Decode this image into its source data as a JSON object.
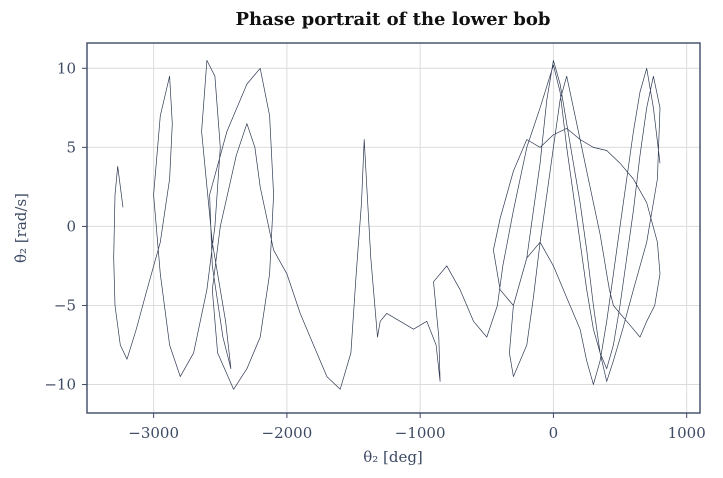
{
  "chart_data": {
    "type": "line",
    "title": "Phase portrait of the lower bob",
    "xlabel": "θ₂  [deg]",
    "ylabel": "θ̇₂  [rad/s]",
    "xlim": [
      -3500,
      1100
    ],
    "ylim": [
      -11.8,
      11.6
    ],
    "xticks": [
      -3000,
      -2000,
      -1000,
      0,
      1000
    ],
    "yticks": [
      -10,
      -5,
      0,
      5,
      10
    ],
    "xtick_labels": [
      "−3000",
      "−2000",
      "−1000",
      "0",
      "1000"
    ],
    "ytick_labels": [
      "−10",
      "−5",
      "0",
      "5",
      "10"
    ],
    "grid": true,
    "colors": {
      "trace": "#2f3a52",
      "axes": "#3d4a63",
      "grid": "#dcdcdc"
    },
    "series": [
      {
        "x": [
          -3230,
          -3270,
          -3290,
          -3300,
          -3290,
          -3250,
          -3200,
          -3130,
          -3050,
          -2950,
          -2880,
          -2860,
          -2880,
          -2950,
          -3000,
          -2950,
          -2880,
          -2800,
          -2700,
          -2600,
          -2540,
          -2500,
          -2540,
          -2600,
          -2640,
          -2560,
          -2460,
          -2420,
          -2480,
          -2560,
          -2580,
          -2450,
          -2300,
          -2200,
          -2130,
          -2100,
          -2130,
          -2200,
          -2300,
          -2400,
          -2520,
          -2560,
          -2500,
          -2380,
          -2300,
          -2240,
          -2200,
          -2100,
          -2000,
          -1900,
          -1800,
          -1700,
          -1600,
          -1520,
          -1480,
          -1440,
          -1420,
          -1400,
          -1370,
          -1340,
          -1320,
          -1300,
          -1250,
          -1150,
          -1050,
          -950,
          -880,
          -850,
          -860,
          -900,
          -800,
          -700,
          -600,
          -500,
          -420,
          -380,
          -300,
          -200,
          -100,
          0,
          50,
          100,
          150,
          200,
          250,
          300,
          350,
          400,
          450,
          500,
          550,
          600,
          650,
          700,
          750,
          800,
          780,
          700,
          600,
          520,
          450,
          400,
          350,
          300,
          250,
          200,
          150,
          100,
          50,
          0,
          -50,
          -100,
          -150,
          -200,
          -300,
          -400,
          -450,
          -400,
          -300,
          -200,
          -100,
          0,
          100,
          200,
          300,
          400,
          500,
          600,
          700,
          780,
          800,
          760,
          700,
          650,
          600,
          550,
          500,
          450,
          420,
          400,
          380,
          350,
          300,
          250,
          200,
          150,
          100,
          50,
          0,
          -50,
          -100,
          -150,
          -200,
          -300,
          -330,
          -300,
          -200,
          -100,
          0,
          100,
          200,
          250,
          300,
          350,
          400,
          450,
          500,
          550,
          600,
          650,
          700,
          750,
          800
        ],
        "y": [
          1.2,
          3.8,
          2.0,
          -2.0,
          -5.0,
          -7.5,
          -8.4,
          -6.5,
          -4.0,
          -1.0,
          3.0,
          6.5,
          9.5,
          7.0,
          2.0,
          -3.0,
          -7.5,
          -9.5,
          -8.0,
          -4.0,
          0.0,
          5.0,
          9.5,
          10.5,
          6.0,
          -1.0,
          -6.0,
          -9.0,
          -7.0,
          -2.5,
          2.0,
          6.0,
          9.0,
          10.0,
          7.0,
          2.0,
          -3.0,
          -7.0,
          -9.0,
          -10.3,
          -8.0,
          -4.0,
          0.0,
          4.5,
          6.5,
          5.0,
          2.5,
          -1.5,
          -3.0,
          -5.5,
          -7.5,
          -9.5,
          -10.3,
          -8.0,
          -3.0,
          1.5,
          5.5,
          2.5,
          -2.0,
          -5.0,
          -7.0,
          -6.0,
          -5.5,
          -6.0,
          -6.5,
          -6.0,
          -7.5,
          -9.8,
          -7.0,
          -3.5,
          -2.5,
          -4.0,
          -6.0,
          -7.0,
          -5.0,
          -2.5,
          1.0,
          5.0,
          7.5,
          10.2,
          8.5,
          5.0,
          2.0,
          -1.0,
          -4.0,
          -6.5,
          -8.0,
          -9.0,
          -7.5,
          -5.0,
          -2.0,
          1.0,
          4.5,
          7.5,
          9.5,
          7.5,
          3.0,
          -1.0,
          -4.0,
          -6.5,
          -8.5,
          -9.8,
          -8.0,
          -5.0,
          -1.5,
          1.5,
          4.0,
          6.5,
          9.0,
          10.5,
          8.0,
          4.0,
          1.0,
          -2.0,
          -5.0,
          -4.0,
          -1.5,
          0.5,
          3.5,
          5.5,
          5.0,
          5.8,
          6.2,
          5.5,
          5.0,
          4.8,
          4.0,
          3.0,
          1.5,
          -1.0,
          -3.0,
          -5.0,
          -6.0,
          -7.0,
          -6.5,
          -6.0,
          -5.5,
          -5.0,
          -4.0,
          -3.0,
          -2.0,
          -0.5,
          1.5,
          3.5,
          5.5,
          7.5,
          9.5,
          8.0,
          5.0,
          2.0,
          -1.0,
          -4.5,
          -7.5,
          -9.5,
          -8.0,
          -5.0,
          -2.0,
          -1.0,
          -2.5,
          -4.5,
          -6.5,
          -8.5,
          -10.0,
          -8.5,
          -6.0,
          -3.0,
          0.0,
          3.0,
          6.0,
          8.5,
          10.0,
          7.5,
          4.0
        ]
      }
    ]
  }
}
